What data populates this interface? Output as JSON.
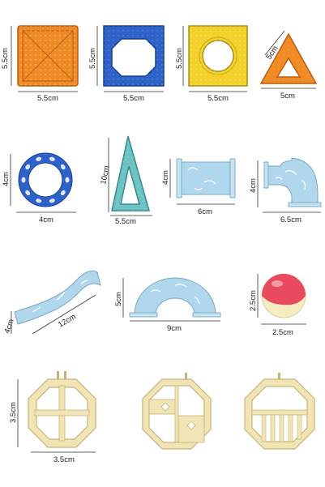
{
  "colors": {
    "orange": "#f08a24",
    "blue": "#2e62c9",
    "yellow": "#f2d22a",
    "clear_blue": "#a9d3ea",
    "teal": "#6fc2c4",
    "cream": "#f1e4b5",
    "cream_dark": "#c9b57a",
    "ball_red": "#e84a5f",
    "ball_cream": "#f6ecc2"
  },
  "labels": {
    "sq_orange_h": "5.5cm",
    "sq_orange_w": "5.5cm",
    "sq_blue_h": "5.5cm",
    "sq_blue_w": "5.5cm",
    "sq_yellow_h": "5.5cm",
    "sq_yellow_w": "5.5cm",
    "tri_side": "5cm",
    "tri_base": "5cm",
    "ring_h": "4cm",
    "ring_w": "4cm",
    "tall_tri_h": "10cm",
    "tall_tri_w": "5.5cm",
    "tube_h": "4cm",
    "tube_w": "6cm",
    "curve_h": "4cm",
    "curve_w": "6.5cm",
    "slide_h": "4cm",
    "slide_len": "12cm",
    "arch_h": "5cm",
    "arch_w": "9cm",
    "ball_h": "2.5cm",
    "ball_w": "2.5cm",
    "oct_h": "3.5cm",
    "oct_w": "3.5cm"
  }
}
